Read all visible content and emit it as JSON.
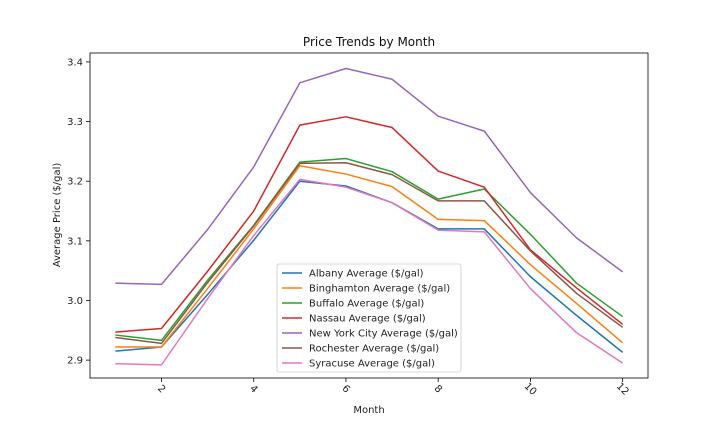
{
  "chart_data": {
    "type": "line",
    "title": "Price Trends by Month",
    "xlabel": "Month",
    "ylabel": "Average Price ($/gal)",
    "x": [
      1,
      2,
      3,
      4,
      5,
      6,
      7,
      8,
      9,
      10,
      11,
      12
    ],
    "xticks": [
      2,
      4,
      6,
      8,
      10,
      12
    ],
    "yticks": [
      2.9,
      3.0,
      3.1,
      3.2,
      3.3,
      3.4
    ],
    "xlim": [
      0.45,
      12.55
    ],
    "ylim": [
      2.87,
      3.415
    ],
    "legend_position": "lower center",
    "series": [
      {
        "name": "Albany Average ($/gal)",
        "color": "#1f77b4",
        "values": [
          2.915,
          2.922,
          3.01,
          3.101,
          3.2,
          3.192,
          3.164,
          3.12,
          3.12,
          3.04,
          2.975,
          2.913
        ]
      },
      {
        "name": "Binghamton Average ($/gal)",
        "color": "#ff7f0e",
        "values": [
          2.922,
          2.922,
          3.02,
          3.12,
          3.226,
          3.212,
          3.191,
          3.136,
          3.134,
          3.06,
          2.995,
          2.929
        ]
      },
      {
        "name": "Buffalo Average ($/gal)",
        "color": "#2ca02c",
        "values": [
          2.942,
          2.933,
          3.034,
          3.126,
          3.232,
          3.238,
          3.216,
          3.17,
          3.187,
          3.111,
          3.029,
          2.973
        ]
      },
      {
        "name": "Nassau Average ($/gal)",
        "color": "#d62728",
        "values": [
          2.947,
          2.953,
          3.049,
          3.15,
          3.294,
          3.308,
          3.29,
          3.217,
          3.19,
          3.085,
          3.021,
          2.96
        ]
      },
      {
        "name": "New York City Average ($/gal)",
        "color": "#9467bd",
        "values": [
          3.029,
          3.027,
          3.119,
          3.224,
          3.365,
          3.389,
          3.371,
          3.309,
          3.284,
          3.181,
          3.105,
          3.048
        ]
      },
      {
        "name": "Rochester Average ($/gal)",
        "color": "#8c564b",
        "values": [
          2.938,
          2.928,
          3.03,
          3.125,
          3.23,
          3.231,
          3.211,
          3.167,
          3.167,
          3.083,
          3.012,
          2.955
        ]
      },
      {
        "name": "Syracuse Average ($/gal)",
        "color": "#e377c2",
        "values": [
          2.894,
          2.892,
          3.003,
          3.109,
          3.203,
          3.19,
          3.164,
          3.118,
          3.115,
          3.02,
          2.946,
          2.895
        ]
      }
    ]
  }
}
